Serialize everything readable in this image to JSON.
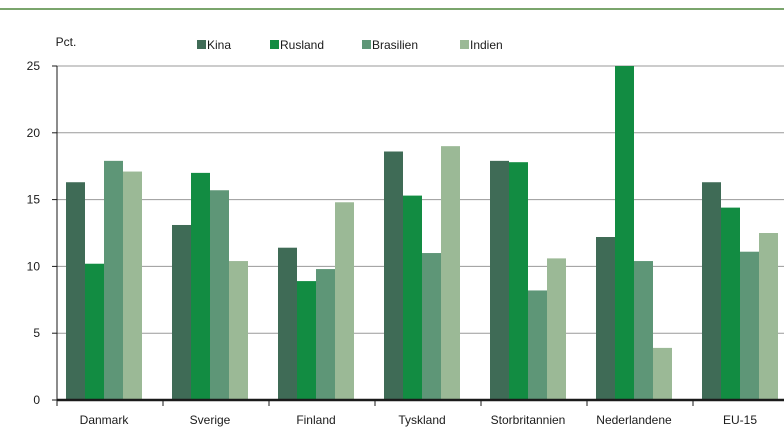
{
  "chart_data": {
    "type": "bar",
    "title": "",
    "ylabel": "Pct.",
    "xlabel": "",
    "ylim": [
      0,
      25
    ],
    "yticks": [
      0,
      5,
      10,
      15,
      20,
      25
    ],
    "grid": true,
    "legend_position": "top",
    "categories": [
      "Danmark",
      "Sverige",
      "Finland",
      "Tyskland",
      "Storbritannien",
      "Nederlandene",
      "EU-15"
    ],
    "series": [
      {
        "name": "Kina",
        "color": "#3f6b56",
        "values": [
          16.3,
          13.1,
          11.4,
          18.6,
          17.9,
          12.2,
          16.3
        ]
      },
      {
        "name": "Rusland",
        "color": "#128c42",
        "values": [
          10.2,
          17.0,
          8.9,
          15.3,
          17.8,
          25.0,
          14.4
        ]
      },
      {
        "name": "Brasilien",
        "color": "#5e9677",
        "values": [
          17.9,
          15.7,
          9.8,
          11.0,
          8.2,
          10.4,
          11.1
        ]
      },
      {
        "name": "Indien",
        "color": "#9bb996",
        "values": [
          17.1,
          10.4,
          14.8,
          19.0,
          10.6,
          3.9,
          12.5
        ]
      }
    ]
  }
}
